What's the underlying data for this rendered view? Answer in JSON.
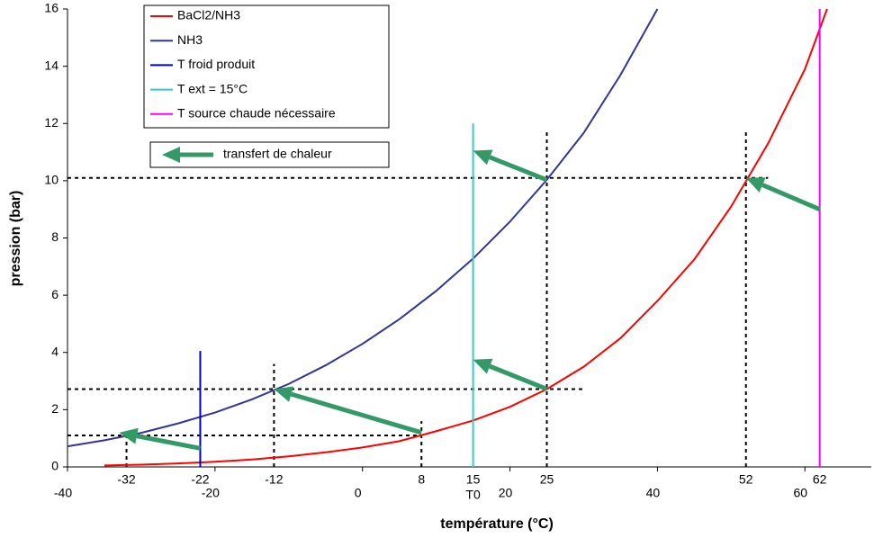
{
  "chart_data": {
    "type": "line",
    "xlabel": "température (°C)",
    "ylabel": "pression (bar)",
    "xlim": [
      -40,
      69
    ],
    "ylim": [
      0,
      16
    ],
    "xticks": [
      -40,
      -20,
      0,
      20,
      40,
      60
    ],
    "yticks": [
      0,
      2,
      4,
      6,
      8,
      10,
      12,
      14,
      16
    ],
    "x_annotations": [
      -32,
      -22,
      -12,
      8,
      15,
      25,
      52,
      62,
      {
        "value": 15,
        "label": "T0"
      }
    ],
    "series": [
      {
        "name": "BaCl2/NH3",
        "color": "#ff0000",
        "x": [
          -35,
          -30,
          -25,
          -20,
          -15,
          -10,
          -5,
          0,
          5,
          10,
          15,
          20,
          25,
          30,
          35,
          40,
          45,
          50,
          55,
          60,
          63
        ],
        "values": [
          0.05,
          0.08,
          0.12,
          0.18,
          0.26,
          0.37,
          0.51,
          0.68,
          0.9,
          1.25,
          1.62,
          2.1,
          2.72,
          3.5,
          4.5,
          5.8,
          7.25,
          9.1,
          11.3,
          13.9,
          16
        ]
      },
      {
        "name": "NH3",
        "color": "#333399",
        "x": [
          -40,
          -35,
          -30,
          -25,
          -20,
          -15,
          -10,
          -5,
          0,
          5,
          10,
          15,
          20,
          25,
          30,
          35,
          40
        ],
        "values": [
          0.72,
          0.93,
          1.19,
          1.52,
          1.9,
          2.36,
          2.9,
          3.55,
          4.3,
          5.16,
          6.15,
          7.28,
          8.57,
          10.03,
          11.67,
          13.7,
          16
        ]
      },
      {
        "name": "T froid produit",
        "color": "#0000cc",
        "x": [
          -22,
          -22
        ],
        "values": [
          0,
          4.05
        ]
      },
      {
        "name": "T ext = 15°C",
        "color": "#33cccc",
        "x": [
          15,
          15
        ],
        "values": [
          0,
          12
        ]
      },
      {
        "name": "T source chaude nécessaire",
        "color": "#ff00ff",
        "x": [
          62,
          62
        ],
        "values": [
          0,
          16
        ]
      }
    ],
    "dashed_lines": [
      {
        "x": [
          -40,
          55
        ],
        "values": [
          10.1,
          10.1
        ]
      },
      {
        "x": [
          -40,
          30
        ],
        "values": [
          2.72,
          2.72
        ]
      },
      {
        "x": [
          -40,
          8
        ],
        "values": [
          1.1,
          1.1
        ]
      },
      {
        "x": [
          -32,
          -32
        ],
        "values": [
          0,
          1.1
        ]
      },
      {
        "x": [
          -12,
          -12
        ],
        "values": [
          0,
          3.6
        ]
      },
      {
        "x": [
          8,
          8
        ],
        "values": [
          0,
          1.6
        ]
      },
      {
        "x": [
          25,
          25
        ],
        "values": [
          0,
          11.7
        ]
      },
      {
        "x": [
          52,
          52
        ],
        "values": [
          0,
          11.7
        ]
      }
    ],
    "arrows": {
      "name": "transfert de chaleur",
      "color": "#339966",
      "items": [
        {
          "x": [
            -22,
            -33
          ],
          "values": [
            0.65,
            1.2
          ]
        },
        {
          "x": [
            8,
            -12
          ],
          "values": [
            1.2,
            2.72
          ]
        },
        {
          "x": [
            25,
            15
          ],
          "values": [
            2.72,
            3.75
          ]
        },
        {
          "x": [
            25,
            15
          ],
          "values": [
            10.03,
            11.05
          ]
        },
        {
          "x": [
            62,
            52
          ],
          "values": [
            9.0,
            10.1
          ]
        }
      ]
    }
  }
}
